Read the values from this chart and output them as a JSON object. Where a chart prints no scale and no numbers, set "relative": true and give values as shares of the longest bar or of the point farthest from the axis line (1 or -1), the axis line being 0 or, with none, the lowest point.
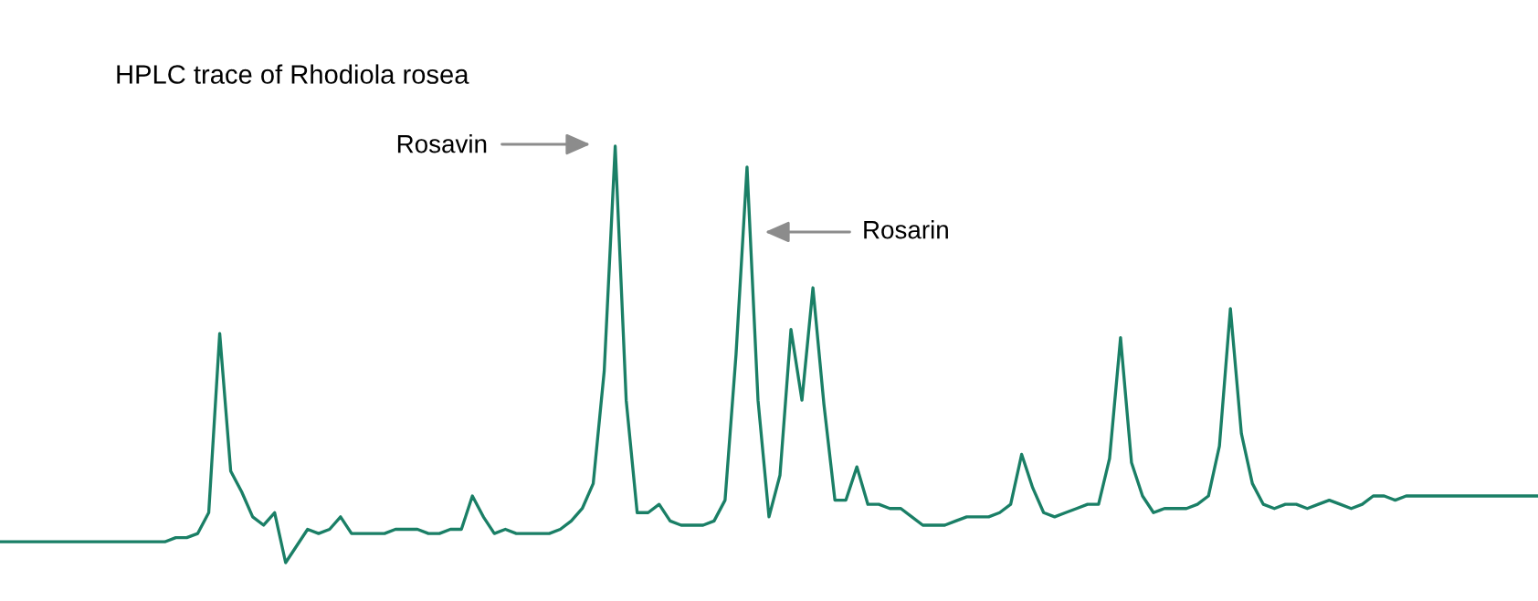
{
  "chart_data": {
    "type": "line",
    "title": "HPLC trace of Rhodiola rosea",
    "relative": true,
    "marker": "none",
    "line_style": "solid",
    "annotations": [
      "Rosavin",
      "Rosarin"
    ],
    "categories": [
      null,
      null,
      null,
      null,
      null,
      null,
      null,
      null,
      null,
      null,
      null,
      null,
      null,
      null,
      null,
      null,
      null,
      null,
      null,
      null,
      null,
      null,
      null,
      null,
      null,
      null,
      null,
      null,
      null,
      null,
      null,
      null,
      null,
      null,
      null,
      null,
      null,
      null,
      null,
      null,
      null,
      null,
      null,
      null,
      null,
      null,
      null,
      null,
      null,
      null,
      null,
      null,
      null,
      null,
      null,
      null,
      null,
      null,
      null,
      null,
      null,
      null,
      null,
      null,
      null,
      null,
      null,
      null,
      null,
      null,
      null,
      null,
      null,
      null,
      null,
      null,
      null,
      null,
      null,
      null,
      null,
      null,
      null,
      null,
      null,
      null,
      null,
      null,
      null,
      null,
      null,
      null,
      null,
      null,
      null,
      null,
      null,
      null,
      null,
      null,
      null,
      null,
      null,
      null,
      null,
      null,
      null,
      null,
      null,
      null,
      null,
      null,
      null,
      null,
      null,
      null,
      null,
      null,
      null,
      null,
      null,
      null,
      null,
      null,
      null,
      null,
      null,
      null,
      null,
      null,
      null,
      null,
      null,
      null,
      null,
      null,
      null,
      null,
      null,
      null,
      null
    ],
    "series": [
      {
        "color": "#1a7f66",
        "values": [
          0.05,
          0.05,
          0.05,
          0.05,
          0.05,
          0.05,
          0.05,
          0.05,
          0.05,
          0.05,
          0.05,
          0.05,
          0.05,
          0.05,
          0.05,
          0.05,
          0.06,
          0.06,
          0.07,
          0.12,
          0.55,
          0.22,
          0.17,
          0.11,
          0.09,
          0.12,
          0,
          0.04,
          0.08,
          0.07,
          0.08,
          0.11,
          0.07,
          0.07,
          0.07,
          0.07,
          0.08,
          0.08,
          0.08,
          0.07,
          0.07,
          0.08,
          0.08,
          0.16,
          0.11,
          0.07,
          0.08,
          0.07,
          0.07,
          0.07,
          0.07,
          0.08,
          0.1,
          0.13,
          0.19,
          0.46,
          1,
          0.39,
          0.12,
          0.12,
          0.14,
          0.1,
          0.09,
          0.09,
          0.09,
          0.1,
          0.15,
          0.5,
          0.95,
          0.39,
          0.11,
          0.21,
          0.56,
          0.39,
          0.66,
          0.38,
          0.15,
          0.15,
          0.23,
          0.14,
          0.14,
          0.13,
          0.13,
          0.11,
          0.09,
          0.09,
          0.09,
          0.1,
          0.11,
          0.11,
          0.11,
          0.12,
          0.14,
          0.26,
          0.18,
          0.12,
          0.11,
          0.12,
          0.13,
          0.14,
          0.14,
          0.25,
          0.54,
          0.24,
          0.16,
          0.12,
          0.13,
          0.13,
          0.13,
          0.14,
          0.16,
          0.28,
          0.61,
          0.31,
          0.19,
          0.14,
          0.13,
          0.14,
          0.14,
          0.13,
          0.14,
          0.15,
          0.14,
          0.13,
          0.14,
          0.16,
          0.16,
          0.15,
          0.16,
          0.16,
          0.16,
          0.16,
          0.16,
          0.16,
          0.16,
          0.16,
          0.16,
          0.16,
          0.16,
          0.16,
          0.16
        ]
      }
    ]
  }
}
